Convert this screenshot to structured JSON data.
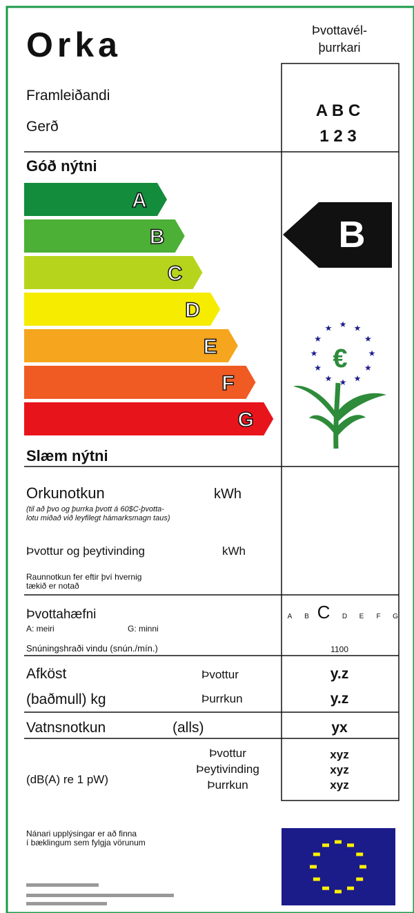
{
  "header": {
    "title": "Orka",
    "appliance": [
      "Þvottavél-",
      "þurrkari"
    ],
    "manufacturer": "Framleiðandi",
    "model": "Gerð",
    "manufacturer_code": "A B C",
    "model_code": "1 2 3"
  },
  "efficiency": {
    "top_label": "Góð nýtni",
    "bottom_label": "Slæm nýtni",
    "classes": [
      "A",
      "B",
      "C",
      "D",
      "E",
      "F",
      "G"
    ],
    "colors": [
      "#138c3c",
      "#4caf36",
      "#b7d41c",
      "#f5ec00",
      "#f5a51e",
      "#f05a23",
      "#e8141c"
    ],
    "rating": "B"
  },
  "energy": {
    "label": "Orkunotkun",
    "unit": "kWh",
    "note": [
      "(til að þvo og þurrka þvott á 60$C-þvotta-",
      "lotu miðað við leyfilegt hámarksmagn taus)"
    ],
    "wash_spin_label": "Þvottur og þeytivinding",
    "wash_spin_unit": "kWh",
    "usage_note": [
      "Raunnotkun fer eftir því hvernig",
      "tækið er notað"
    ]
  },
  "wash_performance": {
    "label": "Þvottahæfni",
    "more": "A: meiri",
    "less": "G: minni",
    "scale": [
      "A",
      "B",
      "C",
      "D",
      "E",
      "F",
      "G"
    ],
    "spin_label": "Snúningshraði vindu (snún./mín.)",
    "spin_value": "1100"
  },
  "capacity": {
    "label": "Afköst",
    "unit_label": "(baðmull) kg",
    "wash_label": "Þvottur",
    "dry_label": "Þurrkun",
    "wash_value": "y.z",
    "dry_value": "y.z"
  },
  "water": {
    "label": "Vatnsnotkun",
    "qualifier": "(alls)",
    "value": "yx"
  },
  "noise": {
    "unit": "(dB(A) re 1 pW)",
    "labels": [
      "Þvottur",
      "Þeytivinding",
      "Þurrkun"
    ],
    "values": [
      "xyz",
      "xyz",
      "xyz"
    ]
  },
  "footer": {
    "info": [
      "Nánari upplýsingar er að finna",
      "í bæklingum sem fylgja vörunum"
    ]
  }
}
